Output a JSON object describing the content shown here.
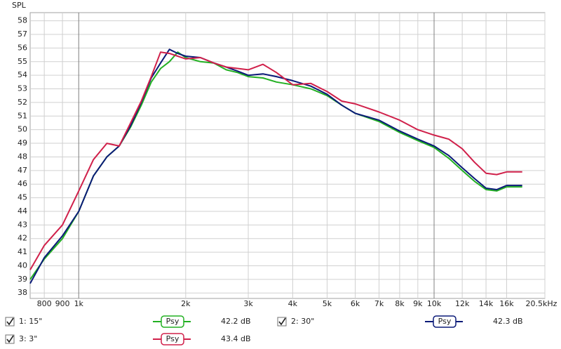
{
  "chart_data": {
    "type": "line",
    "y_label": "SPL",
    "log_x": true,
    "grid": true,
    "xlim": [
      730,
      20500
    ],
    "ylim": [
      37.6,
      58.6
    ],
    "xticks": [
      800,
      900,
      {
        "value": 1000,
        "label": "1k"
      },
      {
        "value": 2000,
        "label": "2k"
      },
      {
        "value": 3000,
        "label": "3k"
      },
      {
        "value": 4000,
        "label": "4k"
      },
      {
        "value": 5000,
        "label": "5k"
      },
      {
        "value": 6000,
        "label": "6k"
      },
      {
        "value": 7000,
        "label": "7k"
      },
      {
        "value": 8000,
        "label": "8k"
      },
      {
        "value": 9000,
        "label": "9k"
      },
      {
        "value": 10000,
        "label": "10k"
      },
      {
        "value": 12000,
        "label": "12k"
      },
      {
        "value": 14000,
        "label": "14k"
      },
      {
        "value": 16000,
        "label": "16k"
      },
      {
        "value": 20500,
        "label": "20.5kHz"
      }
    ],
    "yticks": [
      38,
      39,
      40,
      41,
      42,
      43,
      44,
      45,
      46,
      47,
      48,
      49,
      50,
      51,
      52,
      53,
      54,
      55,
      56,
      57,
      58
    ],
    "x": [
      730,
      800,
      900,
      1000,
      1100,
      1200,
      1300,
      1400,
      1500,
      1600,
      1700,
      1800,
      1900,
      2000,
      2200,
      2400,
      2600,
      2800,
      3000,
      3300,
      3600,
      4000,
      4500,
      5000,
      5500,
      6000,
      7000,
      8000,
      9000,
      10000,
      11000,
      12000,
      13000,
      14000,
      15000,
      16000,
      17700
    ],
    "series": [
      {
        "name": "1: 15\"",
        "color": "#22b022",
        "smoothing": "Psy",
        "level": "42.2 dB",
        "values": [
          39.0,
          40.5,
          42.0,
          44.0,
          46.6,
          48.0,
          48.8,
          50.2,
          51.8,
          53.5,
          54.5,
          55.0,
          55.7,
          55.3,
          55.0,
          54.9,
          54.4,
          54.2,
          53.9,
          53.8,
          53.5,
          53.3,
          53.0,
          52.5,
          51.8,
          51.2,
          50.6,
          49.8,
          49.2,
          48.7,
          47.9,
          47.0,
          46.2,
          45.6,
          45.5,
          45.8,
          45.8
        ]
      },
      {
        "name": "2: 30\"",
        "color": "#0a1a78",
        "smoothing": "Psy",
        "level": "42.3 dB",
        "values": [
          38.7,
          40.6,
          42.2,
          44.0,
          46.6,
          48.0,
          48.8,
          50.3,
          52.0,
          53.8,
          54.9,
          55.9,
          55.6,
          55.4,
          55.3,
          54.9,
          54.6,
          54.3,
          54.0,
          54.1,
          53.9,
          53.6,
          53.2,
          52.6,
          51.8,
          51.2,
          50.7,
          49.9,
          49.3,
          48.8,
          48.1,
          47.2,
          46.4,
          45.7,
          45.6,
          45.9,
          45.9
        ]
      },
      {
        "name": "3: 3\"",
        "color": "#d0204a",
        "smoothing": "Psy",
        "level": "43.4 dB",
        "values": [
          39.7,
          41.5,
          43.0,
          45.5,
          47.8,
          49.0,
          48.8,
          50.5,
          52.1,
          53.9,
          55.7,
          55.6,
          55.4,
          55.2,
          55.3,
          54.9,
          54.6,
          54.5,
          54.4,
          54.8,
          54.2,
          53.3,
          53.4,
          52.8,
          52.1,
          51.9,
          51.3,
          50.7,
          50.0,
          49.6,
          49.3,
          48.6,
          47.6,
          46.8,
          46.7,
          46.9,
          46.9
        ]
      }
    ]
  }
}
